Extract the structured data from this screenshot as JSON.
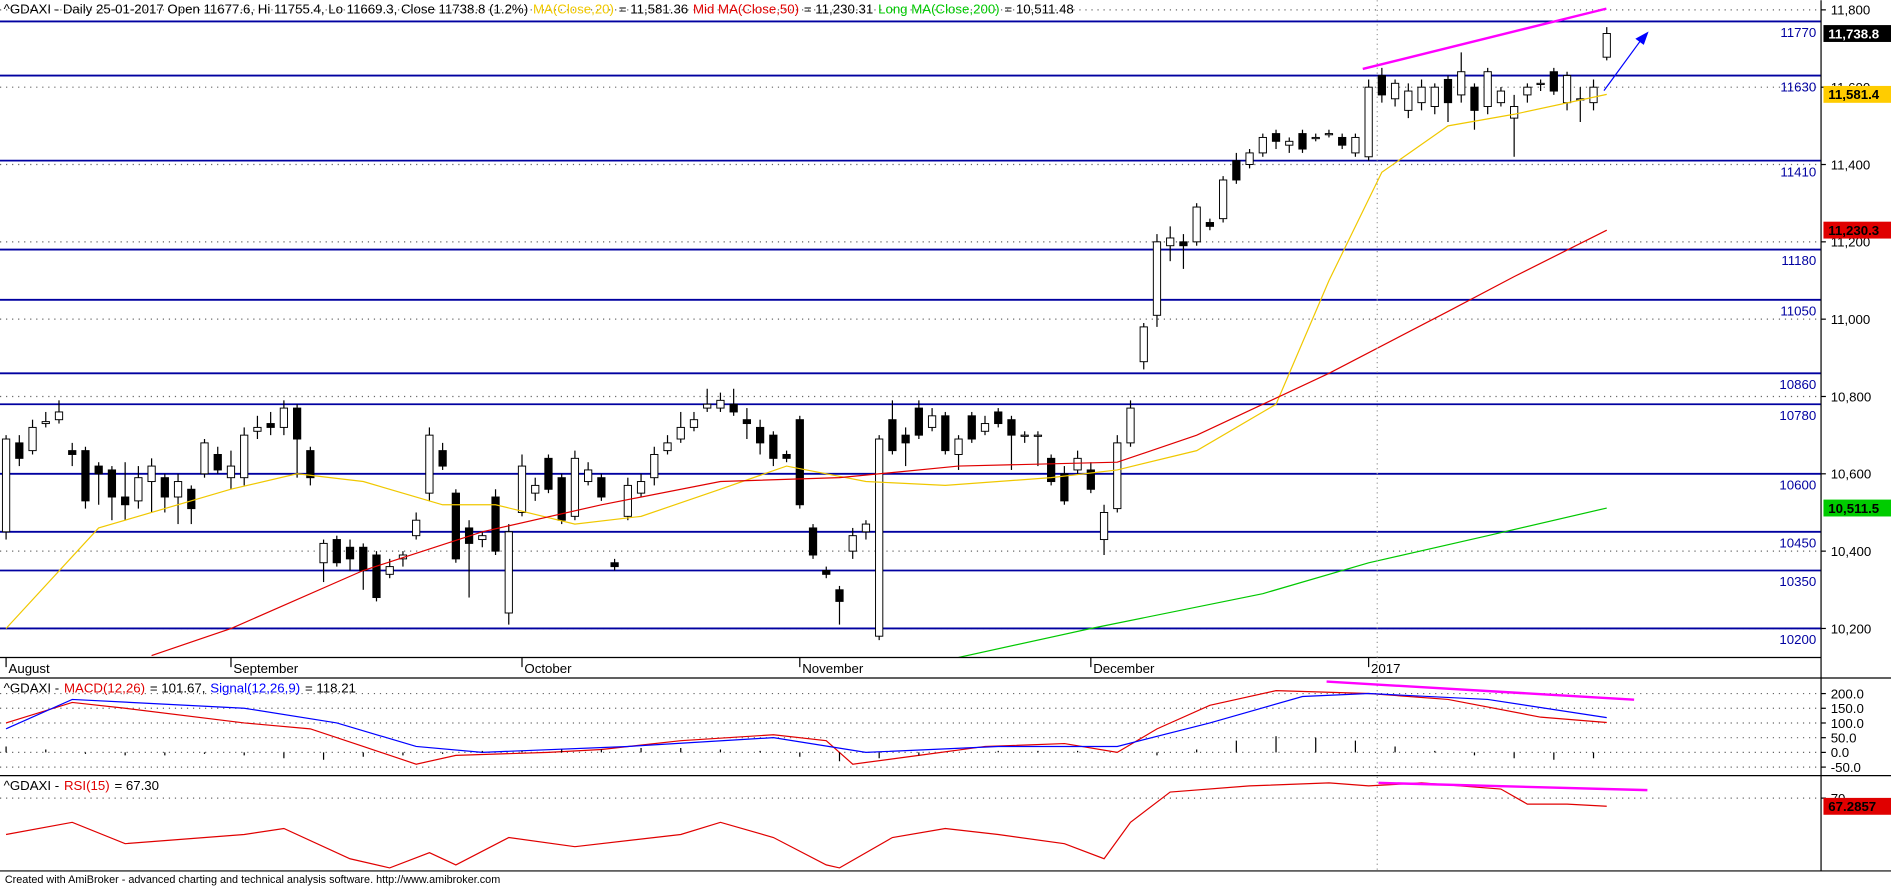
{
  "chart_data": [
    {
      "type": "candlestick",
      "title": "^GDAXI - Daily 25-01-2017 Open 11677.6, Hi 11755.4, Lo 11669.3, Close 11738.8 (1.2%)",
      "up_color": "#ffffff",
      "down_color": "#000000",
      "open": [
        10450,
        10680,
        10660,
        10730,
        10740,
        10660,
        10660,
        10620,
        10610,
        10540,
        10530,
        10580,
        10590,
        10540,
        10560,
        10600,
        10650,
        10590,
        10590,
        10710,
        10730,
        10720,
        10770,
        10660,
        10370,
        10430,
        10410,
        10410,
        10390,
        10340,
        10380,
        10440,
        10550,
        10660,
        10550,
        10460,
        10430,
        10540,
        10240,
        10500,
        10550,
        10640,
        10590,
        10490,
        10580,
        10590,
        10370,
        10490,
        10550,
        10590,
        10660,
        10690,
        10720,
        10770,
        10770,
        10780,
        10740,
        10720,
        10700,
        10650,
        10740,
        10460,
        10350,
        10300,
        10400,
        10450,
        10180,
        10740,
        10700,
        10770,
        10720,
        10750,
        10650,
        10750,
        10710,
        10760,
        10740,
        10700,
        10700,
        10640,
        10600,
        10610,
        10610,
        10430,
        10510,
        10680,
        10890,
        11010,
        11190,
        11200,
        11200,
        11250,
        11260,
        11410,
        11400,
        11430,
        11480,
        11450,
        11480,
        11470,
        11480,
        11470,
        11430,
        11420,
        11630,
        11570,
        11540,
        11560,
        11550,
        11620,
        11580,
        11600,
        11550,
        11560,
        11520,
        11580,
        11610,
        11640,
        11560,
        11570,
        11560,
        11677.6
      ],
      "high": [
        10700,
        10700,
        10740,
        10760,
        10790,
        10680,
        10670,
        10630,
        10620,
        10630,
        10620,
        10640,
        10600,
        10600,
        10570,
        10690,
        10670,
        10660,
        10720,
        10750,
        10760,
        10790,
        10780,
        10670,
        10430,
        10440,
        10430,
        10420,
        10400,
        10380,
        10400,
        10500,
        10720,
        10680,
        10560,
        10480,
        10450,
        10560,
        10470,
        10650,
        10590,
        10650,
        10600,
        10660,
        10630,
        10600,
        10380,
        10590,
        10600,
        10670,
        10700,
        10760,
        10760,
        10820,
        10810,
        10820,
        10770,
        10740,
        10710,
        10660,
        10750,
        10470,
        10360,
        10310,
        10460,
        10480,
        10700,
        10790,
        10720,
        10790,
        10770,
        10760,
        10700,
        10760,
        10750,
        10770,
        10750,
        10710,
        10710,
        10650,
        10620,
        10660,
        10630,
        10520,
        10700,
        10790,
        10990,
        11220,
        11240,
        11220,
        11300,
        11260,
        11370,
        11430,
        11440,
        11480,
        11490,
        11470,
        11490,
        11480,
        11490,
        11480,
        11480,
        11620,
        11650,
        11620,
        11610,
        11620,
        11610,
        11630,
        11690,
        11610,
        11650,
        11600,
        11580,
        11610,
        11620,
        11650,
        11640,
        11600,
        11620,
        11755.4
      ],
      "low": [
        10430,
        10620,
        10650,
        10720,
        10730,
        10620,
        10510,
        10520,
        10480,
        10480,
        10510,
        10500,
        10500,
        10470,
        10470,
        10590,
        10600,
        10560,
        10570,
        10690,
        10700,
        10700,
        10590,
        10570,
        10320,
        10360,
        10350,
        10300,
        10270,
        10330,
        10360,
        10430,
        10530,
        10610,
        10370,
        10280,
        10410,
        10390,
        10210,
        10490,
        10530,
        10550,
        10470,
        10480,
        10570,
        10530,
        10350,
        10480,
        10540,
        10570,
        10650,
        10680,
        10710,
        10760,
        10760,
        10750,
        10690,
        10650,
        10620,
        10630,
        10510,
        10380,
        10330,
        10210,
        10380,
        10430,
        10170,
        10650,
        10620,
        10690,
        10710,
        10650,
        10610,
        10680,
        10700,
        10720,
        10610,
        10680,
        10620,
        10570,
        10520,
        10600,
        10550,
        10390,
        10500,
        10670,
        10870,
        10980,
        11150,
        11130,
        11190,
        11230,
        11250,
        11350,
        11390,
        11420,
        11440,
        11430,
        11430,
        11460,
        11470,
        11440,
        11420,
        11410,
        11560,
        11550,
        11520,
        11540,
        11530,
        11510,
        11560,
        11490,
        11530,
        11550,
        11420,
        11560,
        11590,
        11580,
        11540,
        11510,
        11540,
        11669.3
      ],
      "close": [
        10690,
        10640,
        10720,
        10735,
        10760,
        10650,
        10530,
        10600,
        10540,
        10520,
        10590,
        10620,
        10540,
        10580,
        10510,
        10680,
        10610,
        10620,
        10700,
        10720,
        10720,
        10770,
        10690,
        10590,
        10420,
        10370,
        10380,
        10350,
        10280,
        10360,
        10390,
        10480,
        10700,
        10620,
        10380,
        10420,
        10440,
        10400,
        10450,
        10620,
        10570,
        10560,
        10480,
        10640,
        10610,
        10540,
        10360,
        10570,
        10580,
        10650,
        10680,
        10720,
        10740,
        10780,
        10790,
        10760,
        10730,
        10680,
        10640,
        10640,
        10520,
        10390,
        10340,
        10270,
        10440,
        10470,
        10690,
        10660,
        10680,
        10700,
        10750,
        10660,
        10690,
        10690,
        10730,
        10730,
        10700,
        10700,
        10700,
        10580,
        10530,
        10640,
        10560,
        10500,
        10680,
        10770,
        10980,
        11200,
        11210,
        11190,
        11290,
        11240,
        11360,
        11360,
        11430,
        11470,
        11460,
        11460,
        11440,
        11470,
        11480,
        11450,
        11470,
        11600,
        11580,
        11610,
        11590,
        11600,
        11600,
        11560,
        11640,
        11540,
        11640,
        11590,
        11550,
        11600,
        11610,
        11590,
        11630,
        11570,
        11600,
        11738.8
      ],
      "series": [
        {
          "name": "MA(Close,20)",
          "legend_label": "= 11,581.36",
          "color": "#f0c800",
          "x": [
            0,
            7,
            17,
            22,
            27,
            33,
            37,
            43,
            48,
            54,
            59,
            65,
            71,
            79,
            84,
            90,
            96,
            100,
            104,
            109,
            114,
            121
          ],
          "values": [
            10200,
            10460,
            10560,
            10600,
            10580,
            10520,
            10520,
            10470,
            10490,
            10560,
            10620,
            10580,
            10570,
            10590,
            10610,
            10660,
            10780,
            11100,
            11380,
            11500,
            11530,
            11581.36
          ]
        },
        {
          "name": "Mid MA(Close,50)",
          "legend_label": "= 11,230.31",
          "color": "#e00000",
          "x": [
            11,
            17,
            27,
            36,
            45,
            54,
            63,
            72,
            84,
            90,
            100,
            109,
            114,
            121
          ],
          "values": [
            10130,
            10200,
            10350,
            10450,
            10520,
            10580,
            10590,
            10620,
            10630,
            10700,
            10860,
            11020,
            11110,
            11230.31
          ]
        },
        {
          "name": "Long MA(Close,200)",
          "legend_label": "= 10,511.48",
          "color": "#00c800",
          "x": [
            72,
            82,
            95,
            103,
            112,
            121
          ],
          "values": [
            10125,
            10200,
            10290,
            10370,
            10440,
            10511.48
          ]
        }
      ],
      "levels": [
        11770,
        11630,
        11410,
        11180,
        11050,
        10860,
        10780,
        10600,
        10450,
        10350,
        10200
      ],
      "level_color": "#0000a0",
      "tags": [
        {
          "value": 11738.8,
          "label": "11,738.8",
          "color": "#000000",
          "text_color": "#ffffff"
        },
        {
          "value": 11581.4,
          "label": "11,581.4",
          "color": "#ffcc00",
          "text_color": "#000000"
        },
        {
          "value": 11230.3,
          "label": "11,230.3",
          "color": "#e00000",
          "text_color": "#000000"
        },
        {
          "value": 10511.5,
          "label": "10,511.5",
          "color": "#00cc00",
          "text_color": "#000000"
        }
      ],
      "xlim": [
        -0.46,
        137.2
      ],
      "ylim": [
        10125,
        11825
      ],
      "yticks": [
        {
          "value": 11800,
          "label": "11,800"
        },
        {
          "value": 11600,
          "label": "11,600"
        },
        {
          "value": 11400,
          "label": "11,400"
        },
        {
          "value": 11200,
          "label": "11,200"
        },
        {
          "value": 11000,
          "label": "11,000"
        },
        {
          "value": 10800,
          "label": "10,800"
        },
        {
          "value": 10600,
          "label": "10,600"
        },
        {
          "value": 10400,
          "label": "10,400"
        },
        {
          "value": 10200,
          "label": "10,200"
        }
      ],
      "xticks": [
        {
          "value": 0,
          "label": "August"
        },
        {
          "value": 17,
          "label": "September"
        },
        {
          "value": 39,
          "label": "October"
        },
        {
          "value": 60,
          "label": "November"
        },
        {
          "value": 82,
          "label": "December"
        },
        {
          "value": 103,
          "label": "2017"
        }
      ],
      "grid": true
    },
    {
      "type": "line",
      "title": "^GDAXI -",
      "series": [
        {
          "name": "MACD(12,26)",
          "legend_label": "= 101.67,",
          "color": "#e00000",
          "x": [
            0,
            5,
            9,
            18,
            23,
            27,
            31,
            34,
            41,
            45,
            51,
            58,
            62,
            64,
            69,
            74,
            80,
            84,
            87,
            91,
            96,
            103,
            109,
            116,
            121
          ],
          "values": [
            100,
            170,
            150,
            100,
            80,
            20,
            -40,
            -10,
            0,
            10,
            40,
            60,
            40,
            -40,
            -10,
            20,
            30,
            0,
            80,
            160,
            210,
            200,
            180,
            120,
            101.67
          ]
        },
        {
          "name": "Signal(12,26,9)",
          "legend_label": "= 118.21",
          "color": "#0000ff",
          "x": [
            0,
            5,
            18,
            25,
            31,
            36,
            47,
            58,
            65,
            75,
            84,
            91,
            98,
            103,
            112,
            121
          ],
          "values": [
            80,
            180,
            150,
            100,
            20,
            0,
            20,
            50,
            0,
            20,
            20,
            100,
            190,
            200,
            180,
            118.21
          ]
        },
        {
          "style": "histogram",
          "color": "#000000",
          "x": [
            0,
            3,
            6,
            9,
            12,
            15,
            18,
            21,
            24,
            27,
            30,
            33,
            36,
            39,
            42,
            45,
            48,
            51,
            54,
            57,
            60,
            63,
            66,
            69,
            72,
            75,
            78,
            81,
            84,
            87,
            90,
            93,
            96,
            99,
            102,
            105,
            108,
            111,
            114,
            117,
            120
          ],
          "values": [
            20,
            10,
            -5,
            -10,
            -10,
            -5,
            -10,
            -20,
            -25,
            -15,
            -10,
            -5,
            5,
            5,
            10,
            10,
            15,
            15,
            10,
            5,
            -15,
            -30,
            -20,
            -10,
            0,
            5,
            5,
            5,
            0,
            -10,
            10,
            40,
            55,
            50,
            40,
            20,
            5,
            -10,
            -20,
            -25,
            -20
          ]
        }
      ],
      "xlim": [
        -0.46,
        137.2
      ],
      "ylim": [
        -75,
        249
      ],
      "yticks": [
        {
          "value": 200,
          "label": "200.0"
        },
        {
          "value": 150,
          "label": "150.0"
        },
        {
          "value": 100,
          "label": "100.0"
        },
        {
          "value": 50,
          "label": "50.0"
        },
        {
          "value": 0,
          "label": "0.0"
        },
        {
          "value": -50,
          "label": "-50.0"
        }
      ],
      "grid": true
    },
    {
      "type": "line",
      "title": "^GDAXI -",
      "series": [
        {
          "name": "RSI(15)",
          "legend_label": "= 67.30",
          "color": "#e00000",
          "x": [
            0,
            5,
            9,
            18,
            21,
            26,
            29,
            32,
            34,
            38,
            43,
            51,
            54,
            58,
            62,
            63,
            67,
            71,
            75,
            80,
            83,
            85,
            88,
            94,
            100,
            103,
            107,
            113,
            115,
            118,
            121
          ],
          "values": [
            58,
            62,
            55,
            58,
            60,
            50,
            47,
            52,
            48,
            57,
            54,
            58,
            62,
            57,
            48,
            47,
            57,
            60,
            58,
            55,
            50,
            62,
            72,
            74,
            75,
            74,
            75,
            73,
            68,
            68,
            67.3
          ]
        }
      ],
      "tags": [
        {
          "value": 67.2857,
          "color": "#e00000",
          "text_color": "#000000"
        }
      ],
      "xlim": [
        -0.46,
        137.2
      ],
      "ylim": [
        46,
        77
      ],
      "yticks": [
        70
      ],
      "grid": true
    }
  ],
  "footer": "Created with AmiBroker - advanced charting and technical analysis software. http://www.amibroker.com"
}
